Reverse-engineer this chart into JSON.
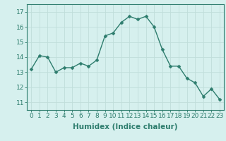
{
  "x": [
    0,
    1,
    2,
    3,
    4,
    5,
    6,
    7,
    8,
    9,
    10,
    11,
    12,
    13,
    14,
    15,
    16,
    17,
    18,
    19,
    20,
    21,
    22,
    23
  ],
  "y": [
    13.2,
    14.1,
    14.0,
    13.0,
    13.3,
    13.3,
    13.6,
    13.4,
    13.8,
    15.4,
    15.6,
    16.3,
    16.7,
    16.5,
    16.7,
    16.0,
    14.5,
    13.4,
    13.4,
    12.6,
    12.3,
    11.4,
    11.9,
    11.2
  ],
  "line_color": "#2e7d6e",
  "marker": "D",
  "marker_size": 2.5,
  "line_width": 1.0,
  "bg_color": "#d6f0ee",
  "grid_color": "#c0deda",
  "xlabel": "Humidex (Indice chaleur)",
  "xlim": [
    -0.5,
    23.5
  ],
  "ylim": [
    10.5,
    17.5
  ],
  "yticks": [
    11,
    12,
    13,
    14,
    15,
    16,
    17
  ],
  "xticks": [
    0,
    1,
    2,
    3,
    4,
    5,
    6,
    7,
    8,
    9,
    10,
    11,
    12,
    13,
    14,
    15,
    16,
    17,
    18,
    19,
    20,
    21,
    22,
    23
  ],
  "xlabel_fontsize": 7.5,
  "tick_fontsize": 6.5
}
